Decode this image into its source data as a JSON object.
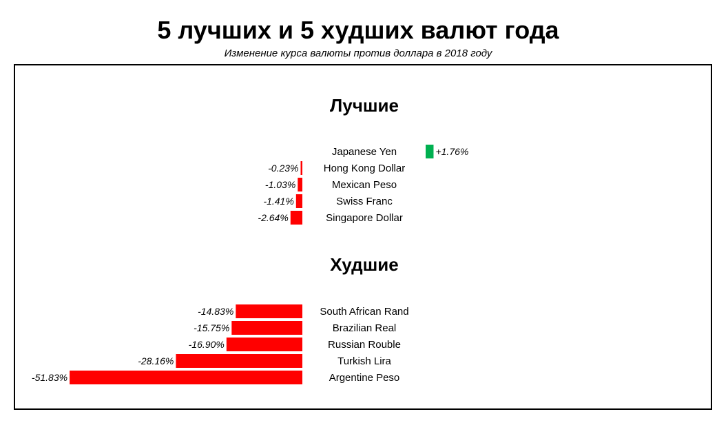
{
  "title": "5 лучших и 5 худших валют года",
  "subtitle": "Изменение курса валюты против доллара в 2018 году",
  "colors": {
    "positive": "#00b050",
    "negative": "#ff0000"
  },
  "chart_data": [
    {
      "type": "bar",
      "orientation": "horizontal",
      "title": "Лучшие",
      "categories": [
        "Japanese Yen",
        "Hong Kong Dollar",
        "Mexican Peso",
        "Swiss Franc",
        "Singapore Dollar"
      ],
      "values": [
        1.76,
        -0.23,
        -1.03,
        -1.41,
        -2.64
      ],
      "labels": [
        "+1.76%",
        "-0.23%",
        "-1.03%",
        "-1.41%",
        "-2.64%"
      ],
      "grid": false
    },
    {
      "type": "bar",
      "orientation": "horizontal",
      "title": "Худшие",
      "categories": [
        "South African Rand",
        "Brazilian Real",
        "Russian Rouble",
        "Turkish Lira",
        "Argentine Peso"
      ],
      "values": [
        -14.83,
        -15.75,
        -16.9,
        -28.16,
        -51.83
      ],
      "labels": [
        "-14.83%",
        "-15.75%",
        "-16.90%",
        "-28.16%",
        "-51.83%"
      ],
      "grid": false
    }
  ]
}
